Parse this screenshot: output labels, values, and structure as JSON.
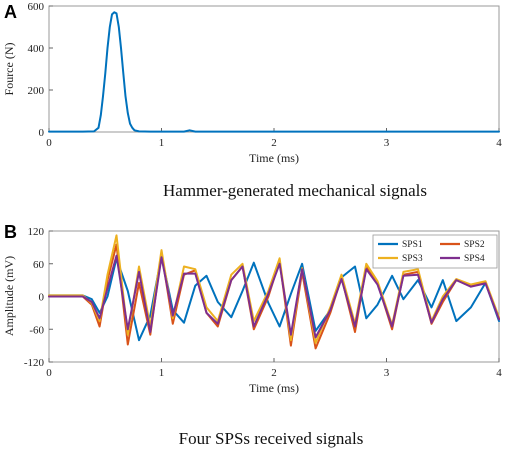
{
  "chart_data": [
    {
      "type": "line",
      "panel_label": "A",
      "title": "",
      "xlabel": "Time (ms)",
      "ylabel": "Fource (N)",
      "xlim": [
        0,
        4
      ],
      "ylim": [
        0,
        600
      ],
      "xticks": [
        "0",
        "1",
        "2",
        "3",
        "4"
      ],
      "yticks": [
        "0",
        "200",
        "400",
        "600"
      ],
      "grid": false,
      "caption": "Hammer-generated mechanical signals",
      "series": [
        {
          "color": "#0072bd",
          "x": [
            0,
            0.3,
            0.4,
            0.44,
            0.46,
            0.48,
            0.5,
            0.52,
            0.54,
            0.56,
            0.58,
            0.6,
            0.62,
            0.64,
            0.66,
            0.68,
            0.7,
            0.72,
            0.74,
            0.76,
            0.8,
            0.9,
            1.2,
            1.25,
            1.3,
            2.0,
            3.0,
            4.0
          ],
          "y": [
            2,
            2,
            3,
            20,
            80,
            170,
            280,
            400,
            500,
            560,
            570,
            565,
            500,
            400,
            280,
            170,
            90,
            40,
            20,
            8,
            3,
            2,
            2,
            8,
            2,
            2,
            2,
            2
          ]
        }
      ]
    },
    {
      "type": "line",
      "panel_label": "B",
      "title": "",
      "xlabel": "Time (ms)",
      "ylabel": "Amplitude (mV)",
      "xlim": [
        0,
        4
      ],
      "ylim": [
        -120,
        120
      ],
      "xticks": [
        "0",
        "1",
        "2",
        "3",
        "4"
      ],
      "yticks": [
        "-120",
        "-60",
        "0",
        "60",
        "120"
      ],
      "grid": false,
      "legend": "top-right",
      "caption": "Four SPSs received signals",
      "series": [
        {
          "name": "SPS1",
          "color": "#0072bd",
          "x": [
            0,
            0.3,
            0.38,
            0.45,
            0.52,
            0.6,
            0.7,
            0.8,
            0.9,
            1.0,
            1.1,
            1.2,
            1.3,
            1.4,
            1.5,
            1.62,
            1.72,
            1.82,
            1.95,
            2.05,
            2.15,
            2.25,
            2.37,
            2.5,
            2.6,
            2.72,
            2.82,
            2.92,
            3.05,
            3.15,
            3.28,
            3.4,
            3.5,
            3.62,
            3.75,
            3.88,
            4.0
          ],
          "y": [
            2,
            2,
            -5,
            -30,
            0,
            70,
            10,
            -80,
            -35,
            75,
            -25,
            -48,
            20,
            38,
            -10,
            -38,
            10,
            62,
            -12,
            -55,
            5,
            60,
            -63,
            -25,
            35,
            55,
            -40,
            -15,
            38,
            -5,
            30,
            -20,
            30,
            -45,
            -20,
            25,
            -45
          ]
        },
        {
          "name": "SPS2",
          "color": "#d95319",
          "x": [
            0,
            0.3,
            0.38,
            0.45,
            0.52,
            0.6,
            0.7,
            0.8,
            0.9,
            1.0,
            1.1,
            1.2,
            1.3,
            1.4,
            1.5,
            1.62,
            1.72,
            1.82,
            1.95,
            2.05,
            2.15,
            2.25,
            2.37,
            2.5,
            2.6,
            2.72,
            2.82,
            2.92,
            3.05,
            3.15,
            3.28,
            3.4,
            3.5,
            3.62,
            3.75,
            3.88,
            4.0
          ],
          "y": [
            0,
            0,
            -15,
            -55,
            30,
            95,
            -88,
            25,
            -70,
            80,
            -50,
            40,
            48,
            -30,
            -55,
            30,
            55,
            -60,
            0,
            65,
            -90,
            45,
            -95,
            -30,
            35,
            -65,
            55,
            25,
            -60,
            40,
            45,
            -50,
            -10,
            30,
            20,
            25,
            -40
          ]
        },
        {
          "name": "SPS3",
          "color": "#edb120",
          "x": [
            0,
            0.3,
            0.38,
            0.45,
            0.52,
            0.6,
            0.7,
            0.8,
            0.9,
            1.0,
            1.1,
            1.2,
            1.3,
            1.4,
            1.5,
            1.62,
            1.72,
            1.82,
            1.95,
            2.05,
            2.15,
            2.25,
            2.37,
            2.5,
            2.6,
            2.72,
            2.82,
            2.92,
            3.05,
            3.15,
            3.28,
            3.4,
            3.5,
            3.62,
            3.75,
            3.88,
            4.0
          ],
          "y": [
            2,
            2,
            -12,
            -45,
            40,
            112,
            -70,
            55,
            -55,
            85,
            -40,
            55,
            50,
            -20,
            -45,
            40,
            60,
            -45,
            10,
            70,
            -80,
            52,
            -85,
            -20,
            40,
            -50,
            60,
            28,
            -52,
            45,
            50,
            -45,
            0,
            32,
            22,
            28,
            -38
          ]
        },
        {
          "name": "SPS4",
          "color": "#7e2f8e",
          "x": [
            0,
            0.3,
            0.38,
            0.45,
            0.52,
            0.6,
            0.7,
            0.8,
            0.9,
            1.0,
            1.1,
            1.2,
            1.3,
            1.4,
            1.5,
            1.62,
            1.72,
            1.82,
            1.95,
            2.05,
            2.15,
            2.25,
            2.37,
            2.5,
            2.6,
            2.72,
            2.82,
            2.92,
            3.05,
            3.15,
            3.28,
            3.4,
            3.5,
            3.62,
            3.75,
            3.88,
            4.0
          ],
          "y": [
            0,
            0,
            -10,
            -40,
            15,
            75,
            -60,
            45,
            -65,
            72,
            -35,
            42,
            42,
            -30,
            -50,
            30,
            55,
            -55,
            5,
            60,
            -70,
            50,
            -75,
            -25,
            32,
            -55,
            50,
            22,
            -55,
            38,
            40,
            -48,
            -5,
            30,
            18,
            24,
            -42
          ]
        }
      ]
    }
  ]
}
